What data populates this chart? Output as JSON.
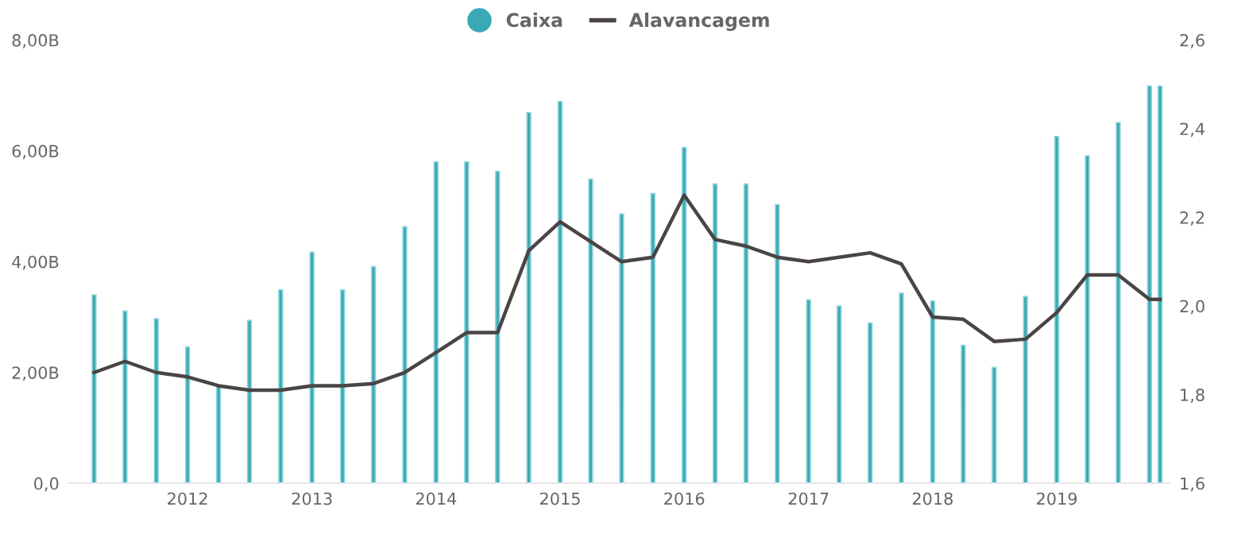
{
  "chart_data": {
    "type": "bar",
    "x": [
      "2011-04-01",
      "2011-07-01",
      "2011-10-01",
      "2012-01-01",
      "2012-04-01",
      "2012-07-01",
      "2012-10-01",
      "2013-01-01",
      "2013-04-01",
      "2013-07-01",
      "2013-10-01",
      "2014-01-01",
      "2014-04-01",
      "2014-07-01",
      "2014-10-01",
      "2015-01-01",
      "2015-04-01",
      "2015-07-01",
      "2015-10-01",
      "2016-01-01",
      "2016-04-01",
      "2016-07-01",
      "2016-10-01",
      "2017-01-01",
      "2017-04-01",
      "2017-07-01",
      "2017-10-01",
      "2018-01-01",
      "2018-04-01",
      "2018-07-01",
      "2018-10-01",
      "2019-01-01",
      "2019-04-01",
      "2019-07-01",
      "2019-10-01",
      "2019-11-01"
    ],
    "series": [
      {
        "name": "Caixa",
        "color": "#3aa9b5",
        "marker": "circle",
        "values": [
          3.4,
          3.11,
          2.97,
          2.46,
          1.77,
          2.94,
          3.49,
          4.17,
          3.49,
          3.91,
          4.63,
          5.8,
          5.8,
          5.63,
          6.69,
          6.89,
          5.49,
          4.86,
          5.23,
          6.06,
          5.4,
          5.4,
          5.03,
          3.31,
          3.2,
          2.89,
          3.43,
          3.29,
          2.49,
          2.09,
          3.37,
          6.26,
          5.91,
          6.51,
          7.17,
          7.17
        ]
      },
      {
        "name": "Alavancagem",
        "type": "line",
        "axis": "y2",
        "color": "#4a4446",
        "values": [
          1.85,
          1.875,
          1.85,
          1.84,
          1.82,
          1.81,
          1.81,
          1.82,
          1.82,
          1.825,
          1.85,
          1.895,
          1.94,
          1.94,
          2.125,
          2.19,
          2.145,
          2.1,
          2.11,
          2.25,
          2.15,
          2.135,
          2.11,
          2.1,
          2.11,
          2.12,
          2.095,
          1.975,
          1.97,
          1.92,
          1.925,
          1.985,
          2.07,
          2.07,
          2.015,
          2.015
        ]
      }
    ],
    "xlim": [
      "2011-01-15",
      "2019-12-01"
    ],
    "xticks": [
      "2012",
      "2013",
      "2014",
      "2015",
      "2016",
      "2017",
      "2018",
      "2019"
    ],
    "ylim": [
      0,
      8
    ],
    "yticks": [
      {
        "value": 0,
        "label": "0,0"
      },
      {
        "value": 2,
        "label": "2,00B"
      },
      {
        "value": 4,
        "label": "4,00B"
      },
      {
        "value": 6,
        "label": "6,00B"
      },
      {
        "value": 8,
        "label": "8,00B"
      }
    ],
    "y2lim": [
      1.6,
      2.6
    ],
    "y2ticks": [
      {
        "value": 1.6,
        "label": "1,6"
      },
      {
        "value": 1.8,
        "label": "1,8"
      },
      {
        "value": 2.0,
        "label": "2,0"
      },
      {
        "value": 2.2,
        "label": "2,2"
      },
      {
        "value": 2.4,
        "label": "2,4"
      },
      {
        "value": 2.6,
        "label": "2,6"
      }
    ],
    "legend": "top",
    "grid": false
  }
}
